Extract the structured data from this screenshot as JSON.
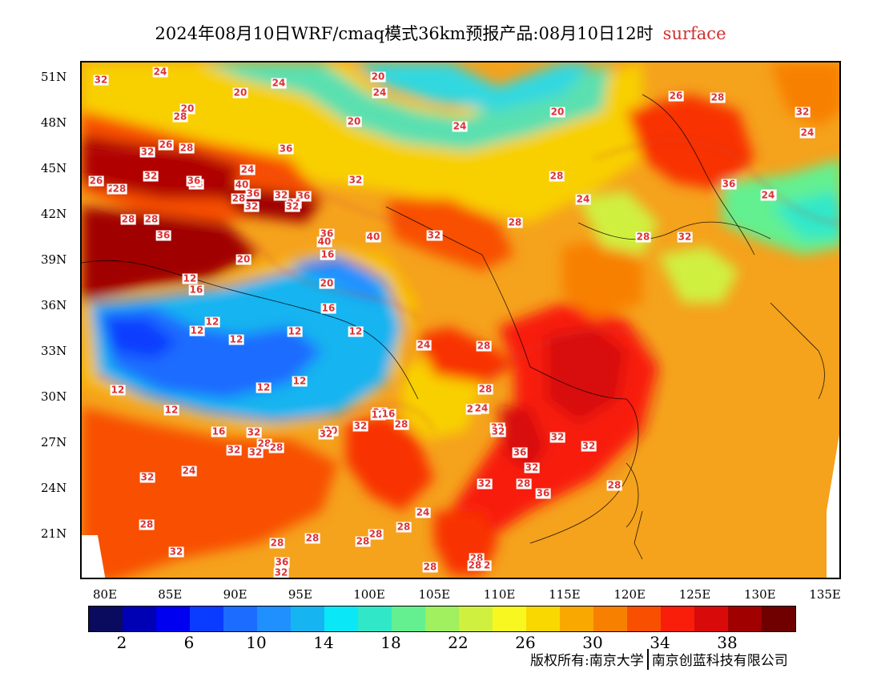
{
  "title": {
    "main": "2024年08月10日WRF/cmaq模式36km预报产品:08月10日12时",
    "variable": "surface"
  },
  "map": {
    "lat_labels": [
      "51N",
      "48N",
      "45N",
      "42N",
      "39N",
      "36N",
      "33N",
      "30N",
      "27N",
      "24N",
      "21N"
    ],
    "lon_labels": [
      "80E",
      "85E",
      "90E",
      "95E",
      "100E",
      "105E",
      "110E",
      "115E",
      "120E",
      "125E",
      "130E",
      "135E"
    ],
    "contour_labels": [
      "32",
      "24",
      "20",
      "24",
      "20",
      "24",
      "20",
      "28",
      "20",
      "24",
      "20",
      "28",
      "32",
      "26",
      "28",
      "36",
      "28",
      "26",
      "32",
      "24",
      "32",
      "28",
      "28",
      "28",
      "28",
      "36",
      "40",
      "32",
      "36",
      "24",
      "28",
      "32",
      "32",
      "36",
      "36",
      "40",
      "40",
      "36",
      "32",
      "28",
      "28",
      "32",
      "36",
      "32",
      "28",
      "28",
      "24",
      "26",
      "24",
      "24",
      "36",
      "16",
      "20",
      "12",
      "16",
      "20",
      "16",
      "12",
      "12",
      "12",
      "12",
      "12",
      "12",
      "12",
      "12",
      "12",
      "16",
      "20",
      "12",
      "16",
      "20",
      "28",
      "28",
      "32",
      "32",
      "28",
      "24",
      "28",
      "32",
      "36",
      "28",
      "32",
      "32",
      "28",
      "32",
      "36",
      "28",
      "32",
      "32",
      "28",
      "24",
      "28",
      "24",
      "28",
      "28",
      "32",
      "28",
      "28",
      "28",
      "28",
      "32",
      "32",
      "28",
      "32",
      "32",
      "24",
      "32",
      "36",
      "32",
      "28"
    ]
  },
  "colorbar": {
    "colors": [
      "#0a0a5e",
      "#0000b4",
      "#0000f0",
      "#0a3cff",
      "#1c6cff",
      "#2090ff",
      "#16b4f0",
      "#0ae8f8",
      "#30e8c8",
      "#64f090",
      "#a0f060",
      "#d0f040",
      "#f8f820",
      "#f8d800",
      "#f8a800",
      "#f88000",
      "#f85000",
      "#f81e0a",
      "#d80a0a",
      "#a00000",
      "#700000"
    ],
    "tick_labels": [
      "2",
      "6",
      "10",
      "14",
      "18",
      "22",
      "26",
      "30",
      "34",
      "38"
    ]
  },
  "copyright": {
    "left": "版权所有:南京大学",
    "right": "南京创蓝科技有限公司"
  }
}
